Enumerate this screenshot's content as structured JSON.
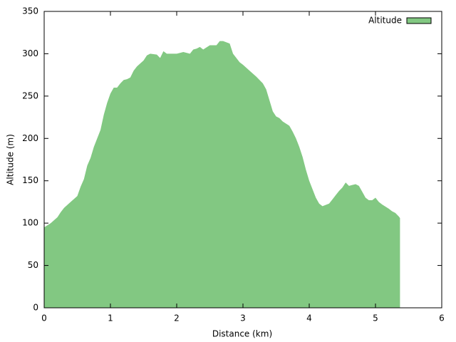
{
  "chart_data": {
    "type": "area",
    "x_label": "Distance (km)",
    "y_label": "Altitude (m)",
    "x": [
      0,
      0.1,
      0.2,
      0.25,
      0.3,
      0.4,
      0.5,
      0.55,
      0.6,
      0.65,
      0.7,
      0.75,
      0.8,
      0.85,
      0.9,
      0.95,
      1.0,
      1.05,
      1.1,
      1.15,
      1.2,
      1.25,
      1.3,
      1.35,
      1.4,
      1.5,
      1.55,
      1.6,
      1.7,
      1.75,
      1.8,
      1.85,
      1.9,
      2.0,
      2.1,
      2.2,
      2.25,
      2.3,
      2.35,
      2.4,
      2.5,
      2.6,
      2.65,
      2.7,
      2.8,
      2.85,
      2.9,
      2.95,
      3.0,
      3.1,
      3.2,
      3.3,
      3.35,
      3.4,
      3.45,
      3.5,
      3.55,
      3.6,
      3.7,
      3.75,
      3.8,
      3.85,
      3.9,
      3.95,
      4.0,
      4.05,
      4.1,
      4.15,
      4.2,
      4.3,
      4.35,
      4.4,
      4.45,
      4.5,
      4.55,
      4.6,
      4.65,
      4.7,
      4.75,
      4.8,
      4.85,
      4.9,
      4.95,
      5.0,
      5.05,
      5.1,
      5.2,
      5.25,
      5.3,
      5.35,
      5.37
    ],
    "series": [
      {
        "name": "Altitude",
        "color": "#82c882",
        "values": [
          95,
          100,
          107,
          113,
          118,
          125,
          132,
          143,
          152,
          168,
          177,
          190,
          200,
          210,
          228,
          242,
          253,
          260,
          260,
          265,
          269,
          270,
          272,
          280,
          285,
          292,
          298,
          300,
          299,
          295,
          303,
          300,
          300,
          300,
          302,
          300,
          305,
          306,
          308,
          305,
          310,
          310,
          315,
          315,
          312,
          300,
          295,
          290,
          287,
          280,
          273,
          265,
          258,
          245,
          232,
          226,
          224,
          220,
          215,
          208,
          200,
          190,
          178,
          163,
          150,
          140,
          130,
          123,
          120,
          123,
          128,
          133,
          138,
          142,
          148,
          144,
          145,
          146,
          144,
          137,
          130,
          127,
          127,
          130,
          125,
          122,
          117,
          114,
          112,
          108,
          106
        ]
      }
    ],
    "xlim": [
      0,
      6
    ],
    "xticks": [
      0,
      1,
      2,
      3,
      4,
      5,
      6
    ],
    "ylim": [
      0,
      350
    ],
    "yticks": [
      0,
      50,
      100,
      150,
      200,
      250,
      300,
      350
    ],
    "legend": "top-right"
  }
}
